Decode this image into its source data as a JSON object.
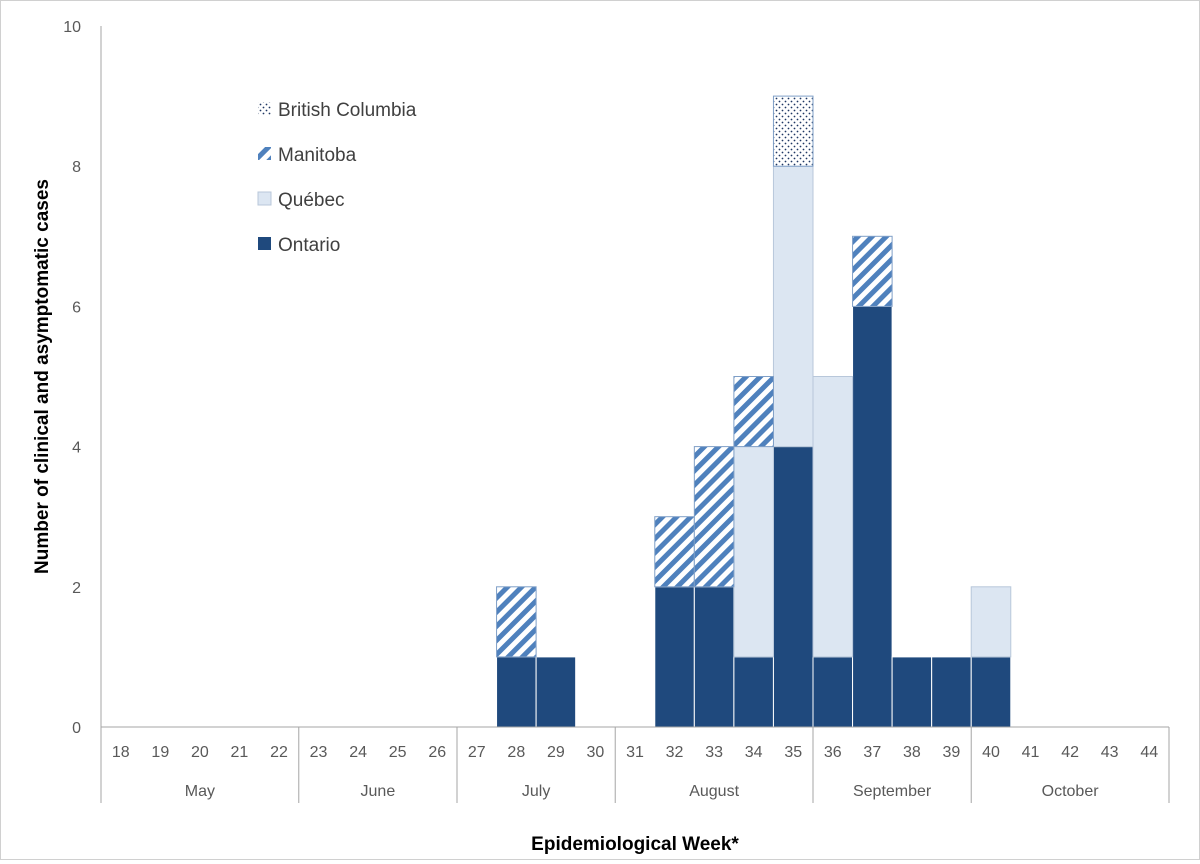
{
  "chart_data": {
    "type": "bar",
    "stacked": true,
    "title": "",
    "xlabel": "Epidemiological Week*",
    "ylabel": "Number of clinical and asymptomatic cases",
    "ylim": [
      0,
      10
    ],
    "yticks": [
      0,
      2,
      4,
      6,
      8,
      10
    ],
    "grid": false,
    "legend_position": "top-left",
    "categories": [
      "18",
      "19",
      "20",
      "21",
      "22",
      "23",
      "24",
      "25",
      "26",
      "27",
      "28",
      "29",
      "30",
      "31",
      "32",
      "33",
      "34",
      "35",
      "36",
      "37",
      "38",
      "39",
      "40",
      "41",
      "42",
      "43",
      "44"
    ],
    "months": [
      {
        "name": "May",
        "weeks": [
          "18",
          "19",
          "20",
          "21",
          "22"
        ]
      },
      {
        "name": "June",
        "weeks": [
          "23",
          "24",
          "25",
          "26"
        ]
      },
      {
        "name": "July",
        "weeks": [
          "27",
          "28",
          "29",
          "30"
        ]
      },
      {
        "name": "August",
        "weeks": [
          "31",
          "32",
          "33",
          "34",
          "35"
        ]
      },
      {
        "name": "September",
        "weeks": [
          "36",
          "37",
          "38",
          "39"
        ]
      },
      {
        "name": "October",
        "weeks": [
          "40",
          "41",
          "42",
          "43",
          "44"
        ]
      }
    ],
    "series": [
      {
        "name": "Ontario",
        "pattern": "solid",
        "color": "#1f497d",
        "values": [
          0,
          0,
          0,
          0,
          0,
          0,
          0,
          0,
          0,
          0,
          1,
          1,
          0,
          0,
          2,
          2,
          1,
          4,
          1,
          6,
          1,
          1,
          1,
          0,
          0,
          0,
          0
        ]
      },
      {
        "name": "Québec",
        "pattern": "solid",
        "color": "#dce6f2",
        "values": [
          0,
          0,
          0,
          0,
          0,
          0,
          0,
          0,
          0,
          0,
          0,
          0,
          0,
          0,
          0,
          0,
          3,
          4,
          4,
          0,
          0,
          0,
          1,
          0,
          0,
          0,
          0
        ]
      },
      {
        "name": "Manitoba",
        "pattern": "diagonal-stripes",
        "color": "#4f81bd",
        "values": [
          0,
          0,
          0,
          0,
          0,
          0,
          0,
          0,
          0,
          0,
          1,
          0,
          0,
          0,
          1,
          2,
          1,
          0,
          0,
          1,
          0,
          0,
          0,
          0,
          0,
          0,
          0
        ]
      },
      {
        "name": "British Columbia",
        "pattern": "dots",
        "color": "#1f3864",
        "values": [
          0,
          0,
          0,
          0,
          0,
          0,
          0,
          0,
          0,
          0,
          0,
          0,
          0,
          0,
          0,
          0,
          0,
          1,
          0,
          0,
          0,
          0,
          0,
          0,
          0,
          0,
          0
        ]
      }
    ],
    "legend_order": [
      "British Columbia",
      "Manitoba",
      "Québec",
      "Ontario"
    ]
  }
}
